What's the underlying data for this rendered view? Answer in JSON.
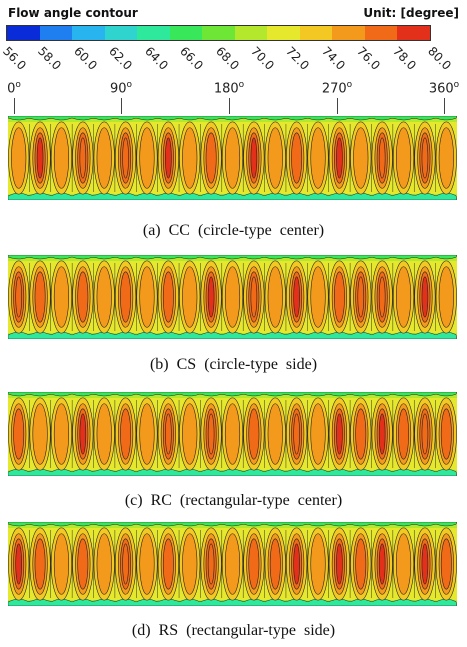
{
  "legend": {
    "title": "Flow angle contour",
    "unit": "Unit: [degree]",
    "ticks": [
      "56.0",
      "58.0",
      "60.0",
      "62.0",
      "64.0",
      "66.0",
      "68.0",
      "70.0",
      "72.0",
      "74.0",
      "76.0",
      "78.0",
      "80.0"
    ],
    "colors": [
      "#0a2bd8",
      "#1f7ff0",
      "#28b4ef",
      "#2fd4ce",
      "#2ee89c",
      "#39e85a",
      "#6ee636",
      "#b3e82d",
      "#e5e82c",
      "#f3c822",
      "#f39a1c",
      "#f06a18",
      "#e2301a"
    ]
  },
  "axis": {
    "labels": [
      "0",
      "90",
      "180",
      "270",
      "360"
    ],
    "superscript": "o"
  },
  "panels": [
    {
      "caption": "(a)  CC  (circle-type  center)",
      "cores": [
        [
          1.0,
          0.55
        ],
        [
          2.4,
          0.15
        ],
        [
          0.4,
          0.5
        ],
        [
          1.8,
          0.85
        ],
        [
          0.4,
          0.15
        ],
        [
          2.0,
          0.6
        ],
        [
          0.7,
          0.3
        ],
        [
          2.2,
          0.75
        ],
        [
          0.3,
          0.7
        ],
        [
          1.7,
          0.2
        ],
        [
          0.8,
          0.9
        ],
        [
          2.5,
          0.05
        ],
        [
          0.3,
          0.3
        ],
        [
          1.4,
          0.95
        ],
        [
          0.8,
          0.4
        ],
        [
          2.3,
          0.65
        ],
        [
          0.4,
          0.75
        ],
        [
          1.9,
          0.25
        ],
        [
          0.6,
          0.5
        ],
        [
          2.4,
          0.1
        ],
        [
          0.9,
          0.8
        ]
      ]
    },
    {
      "caption": "(b)  CS  (circle-type  side)",
      "cores": [
        [
          1.8,
          0.6
        ],
        [
          1.3,
          0.35
        ],
        [
          0.2,
          0.8
        ],
        [
          1.5,
          0.1
        ],
        [
          0.4,
          0.5
        ],
        [
          1.7,
          0.9
        ],
        [
          0.2,
          0.25
        ],
        [
          1.6,
          0.7
        ],
        [
          0.6,
          0.05
        ],
        [
          2.3,
          0.55
        ],
        [
          0.3,
          0.85
        ],
        [
          2.0,
          0.2
        ],
        [
          0.5,
          0.65
        ],
        [
          2.3,
          0.4
        ],
        [
          0.7,
          0.95
        ],
        [
          1.2,
          0.15
        ],
        [
          1.8,
          0.7
        ],
        [
          2.2,
          0.35
        ],
        [
          0.9,
          0.6
        ],
        [
          2.4,
          0.9
        ],
        [
          1.0,
          0.45
        ]
      ]
    },
    {
      "caption": "(c)  RC  (rectangular-type  center)",
      "cores": [
        [
          1.5,
          0.3
        ],
        [
          0.6,
          0.7
        ],
        [
          0.3,
          0.2
        ],
        [
          1.9,
          0.9
        ],
        [
          0.7,
          0.45
        ],
        [
          1.4,
          0.1
        ],
        [
          0.3,
          0.6
        ],
        [
          1.8,
          0.85
        ],
        [
          0.8,
          0.35
        ],
        [
          2.2,
          0.05
        ],
        [
          0.5,
          0.7
        ],
        [
          1.6,
          0.4
        ],
        [
          1.0,
          0.95
        ],
        [
          2.3,
          0.2
        ],
        [
          0.8,
          0.55
        ],
        [
          2.1,
          0.8
        ],
        [
          1.2,
          0.15
        ],
        [
          2.4,
          0.6
        ],
        [
          1.6,
          0.9
        ],
        [
          2.0,
          0.3
        ],
        [
          1.3,
          0.7
        ]
      ]
    },
    {
      "caption": "(d)  RS  (rectangular-type  side)",
      "cores": [
        [
          2.0,
          0.75
        ],
        [
          1.2,
          0.3
        ],
        [
          0.3,
          0.9
        ],
        [
          1.6,
          0.2
        ],
        [
          0.7,
          0.55
        ],
        [
          2.0,
          0.05
        ],
        [
          0.4,
          0.65
        ],
        [
          1.5,
          0.35
        ],
        [
          0.5,
          0.85
        ],
        [
          2.3,
          0.15
        ],
        [
          0.8,
          0.5
        ],
        [
          1.6,
          0.95
        ],
        [
          1.2,
          0.25
        ],
        [
          2.1,
          0.7
        ],
        [
          0.7,
          0.4
        ],
        [
          2.0,
          0.9
        ],
        [
          1.6,
          0.1
        ],
        [
          2.2,
          0.6
        ],
        [
          0.8,
          0.8
        ],
        [
          2.5,
          0.35
        ],
        [
          1.4,
          0.65
        ]
      ]
    }
  ]
}
